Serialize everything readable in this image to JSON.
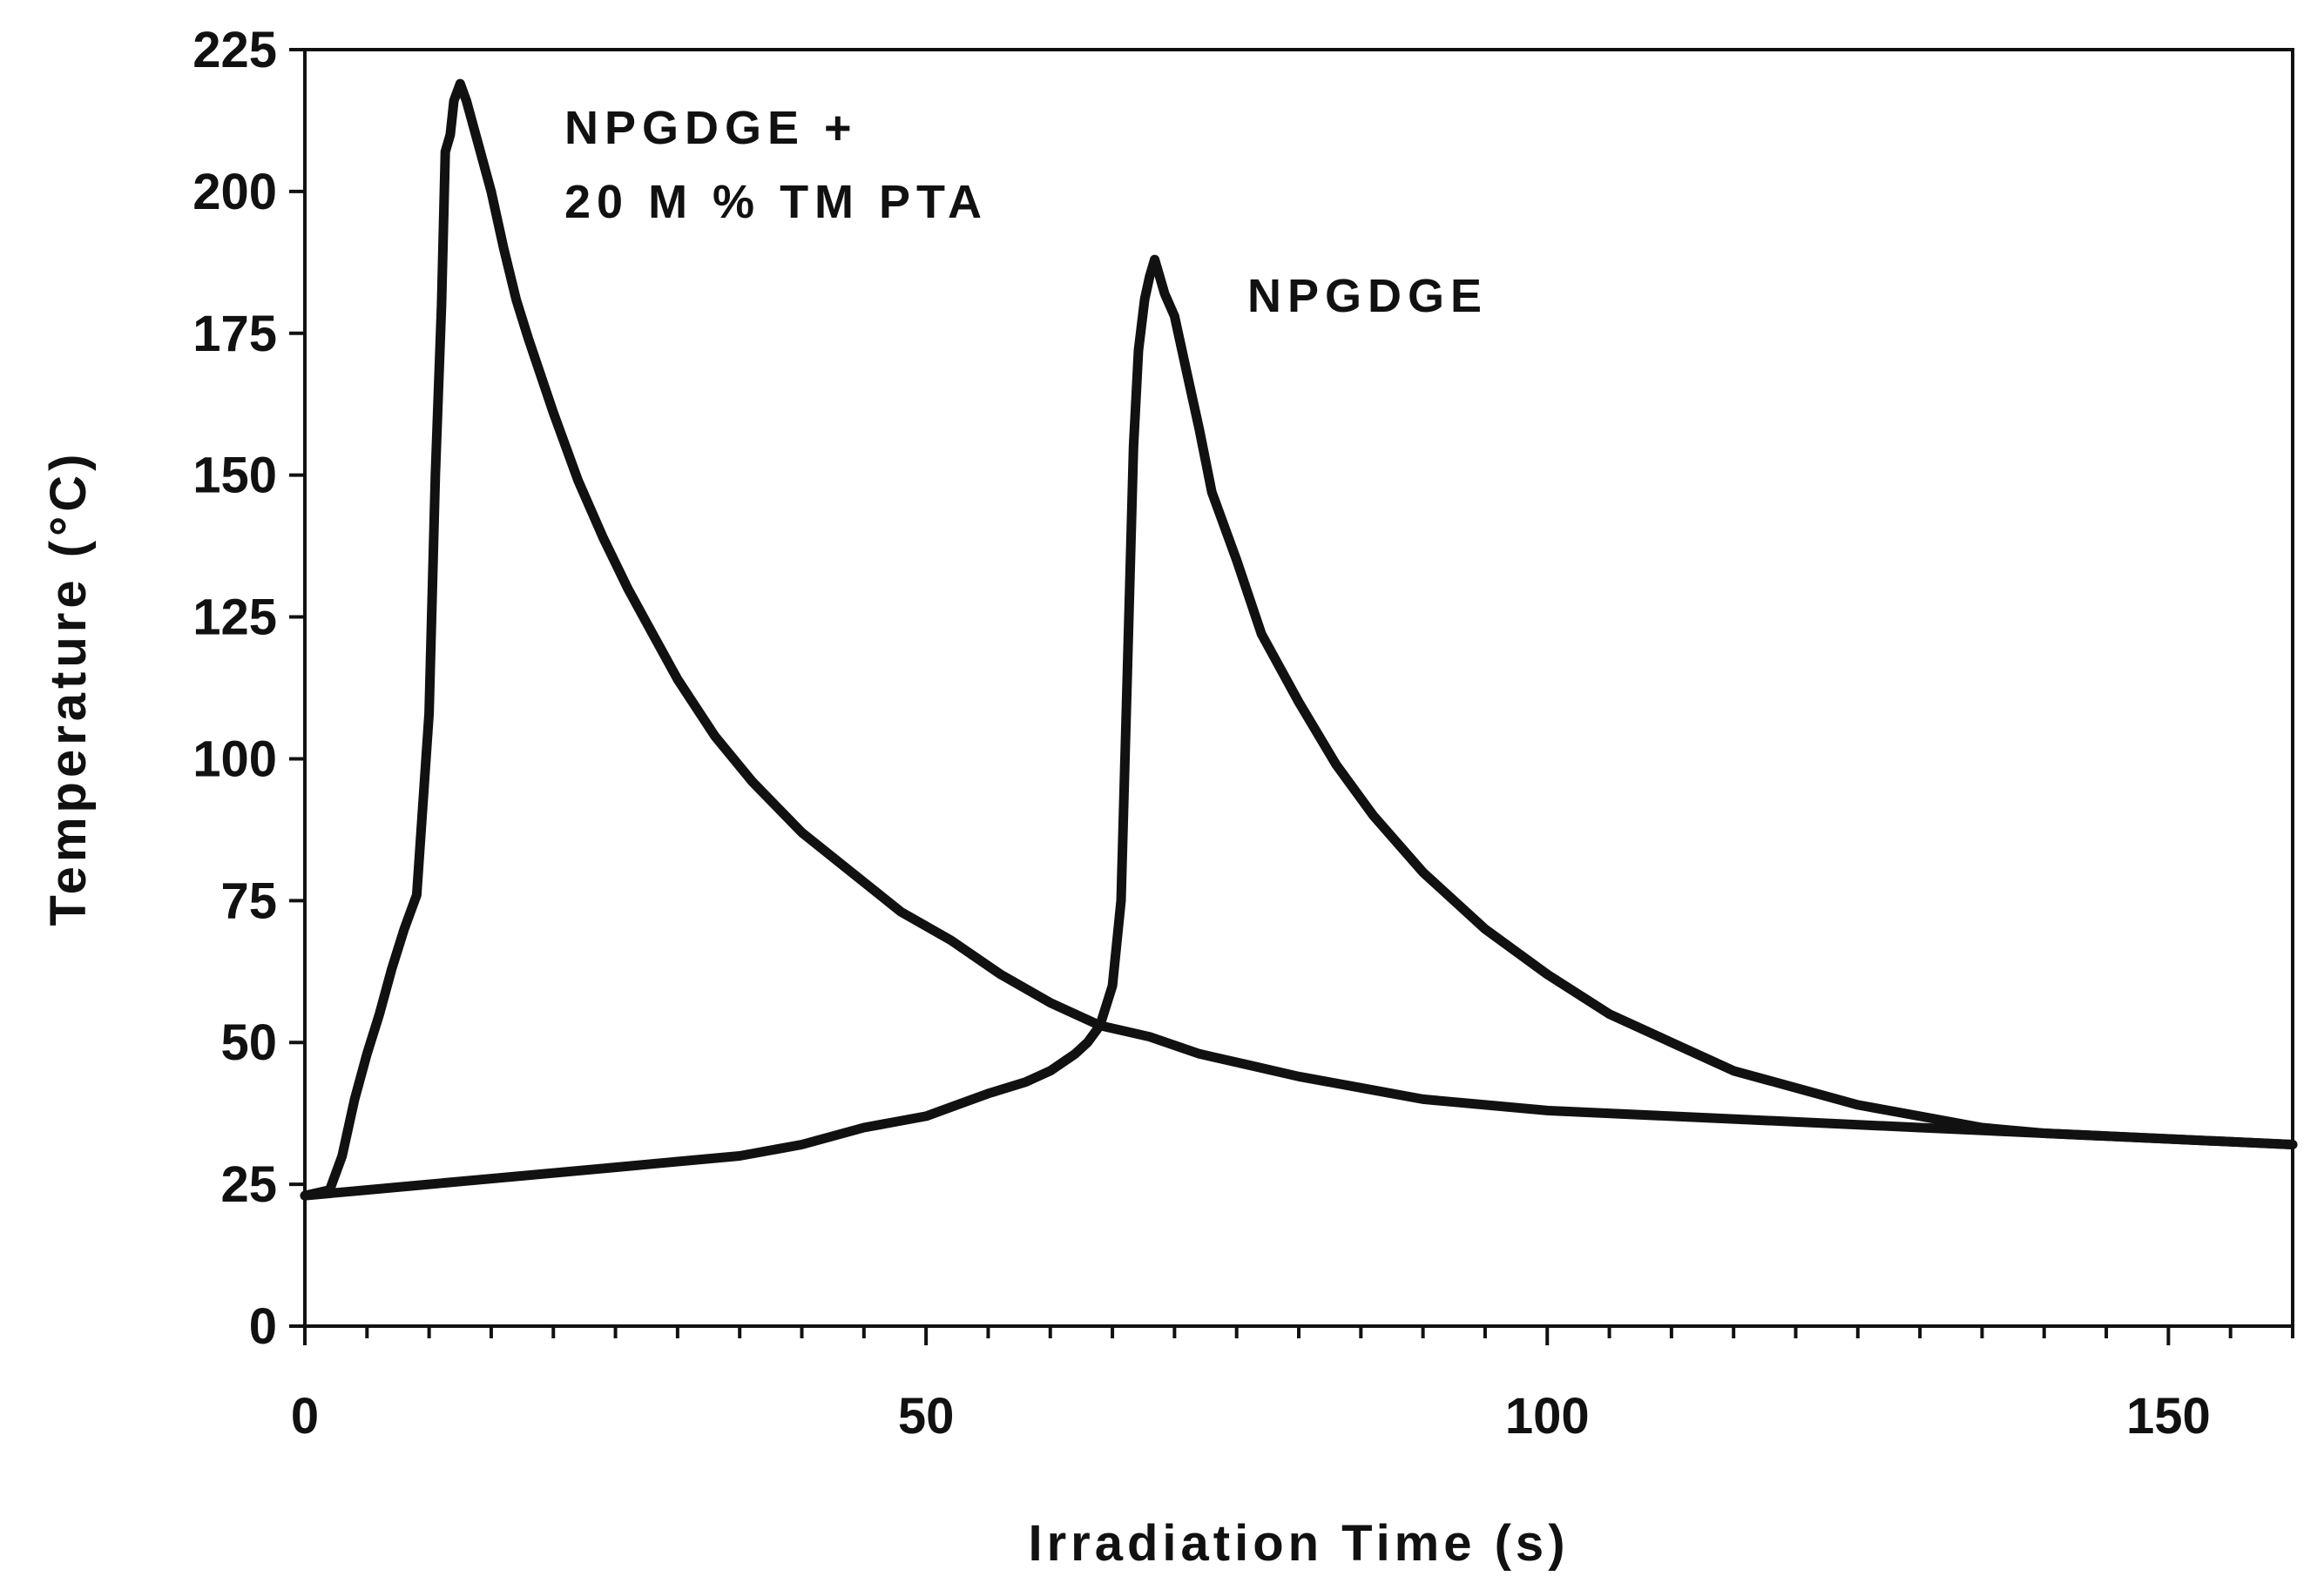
{
  "chart_data": {
    "type": "line",
    "xlabel": "Irradiation Time (s)",
    "ylabel": "Temperature (°C)",
    "xlim": [
      0,
      160
    ],
    "ylim": [
      0,
      225
    ],
    "x_ticks": [
      0,
      50,
      100,
      150
    ],
    "x_minor_step": 5,
    "y_ticks": [
      0,
      25,
      50,
      75,
      100,
      125,
      150,
      175,
      200,
      225
    ],
    "grid": false,
    "legend": "none",
    "line_color": "#111111",
    "annotations": [
      {
        "lines": [
          "NPGDGE +",
          "20 M % TM PTA"
        ],
        "series": 0
      },
      {
        "lines": [
          "NPGDGE"
        ],
        "series": 1
      }
    ],
    "series": [
      {
        "x": [
          0,
          2,
          3,
          4,
          5,
          6,
          7,
          8,
          9,
          10,
          10.5,
          11,
          11.3,
          11.7,
          12,
          12.5,
          13,
          14,
          15,
          16,
          17,
          18,
          20,
          22,
          24,
          26,
          28,
          30,
          33,
          36,
          40,
          44,
          48,
          52,
          56,
          60,
          64,
          68,
          72,
          76,
          80,
          85,
          90,
          95,
          100,
          110,
          120,
          130,
          140,
          150,
          160
        ],
        "y": [
          23,
          24,
          30,
          40,
          48,
          55,
          63,
          70,
          76,
          108,
          150,
          180,
          207,
          210,
          216,
          219,
          216,
          208,
          200,
          190,
          181,
          174,
          161,
          149,
          139,
          130,
          122,
          114,
          104,
          96,
          87,
          80,
          73,
          68,
          62,
          57,
          53,
          51,
          48,
          46,
          44,
          42,
          40,
          39,
          38,
          37,
          36,
          35,
          34,
          33,
          32
        ]
      },
      {
        "x": [
          0,
          5,
          10,
          15,
          20,
          25,
          30,
          35,
          40,
          45,
          50,
          55,
          58,
          60,
          62,
          63,
          64,
          65,
          65.7,
          66.2,
          66.7,
          67.1,
          67.6,
          68,
          68.4,
          68.8,
          69.2,
          70,
          71,
          72,
          73,
          75,
          77,
          80,
          83,
          86,
          90,
          95,
          100,
          105,
          110,
          115,
          120,
          125,
          130,
          135,
          140,
          150,
          160
        ],
        "y": [
          23,
          24,
          25,
          26,
          27,
          28,
          29,
          30,
          32,
          35,
          37,
          41,
          43,
          45,
          48,
          50,
          53,
          60,
          75,
          115,
          155,
          172,
          181,
          185,
          188,
          185,
          182,
          178,
          168,
          158,
          147,
          135,
          122,
          110,
          99,
          90,
          80,
          70,
          62,
          55,
          50,
          45,
          42,
          39,
          37,
          35,
          34,
          33,
          32
        ]
      }
    ]
  }
}
